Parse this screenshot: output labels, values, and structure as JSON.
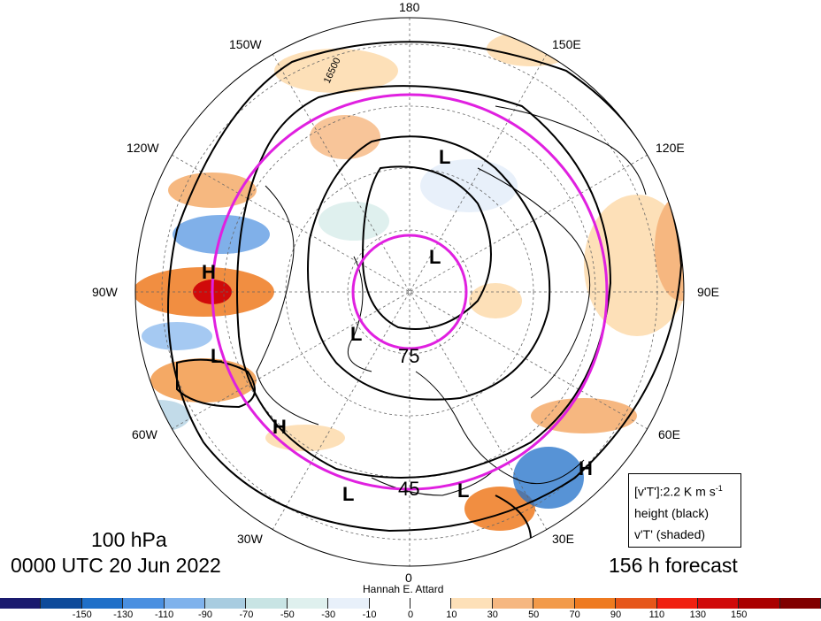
{
  "map": {
    "level_title": "100 hPa",
    "valid_time": "0000 UTC 20 Jun 2022",
    "forecast": "156 h forecast",
    "author": "Hannah E. Attard",
    "legend_lines": [
      "[v'T']:2.2 K m s",
      "height (black)",
      "v'T' (shaded)"
    ],
    "legend_superscript": "-1",
    "meridian_labels": [
      "180",
      "150E",
      "120E",
      "90E",
      "60E",
      "30E",
      "0",
      "30W",
      "60W",
      "90W",
      "120W",
      "150W"
    ],
    "contour_label": "16500",
    "circle_labels": [
      "75",
      "45"
    ],
    "pressure_systems": [
      "L",
      "L",
      "H",
      "L",
      "L",
      "H",
      "L",
      "L",
      "H"
    ],
    "colorbar": {
      "colors": [
        "#1a1a6e",
        "#0d4a9a",
        "#1f6fc8",
        "#4a8fe0",
        "#7fb2ec",
        "#a8cce0",
        "#c8e4e4",
        "#dff0ee",
        "#e8f0fa",
        "#ffffff",
        "#ffffff",
        "#fde0b8",
        "#f6b780",
        "#f29a4a",
        "#ee7a20",
        "#e6561a",
        "#f02010",
        "#d00a0a",
        "#aa0000",
        "#800000"
      ],
      "tick_labels": [
        "-150",
        "-130",
        "-110",
        "-90",
        "-70",
        "-50",
        "-30",
        "-10",
        "0",
        "10",
        "30",
        "50",
        "70",
        "90",
        "110",
        "130",
        "150"
      ]
    }
  }
}
